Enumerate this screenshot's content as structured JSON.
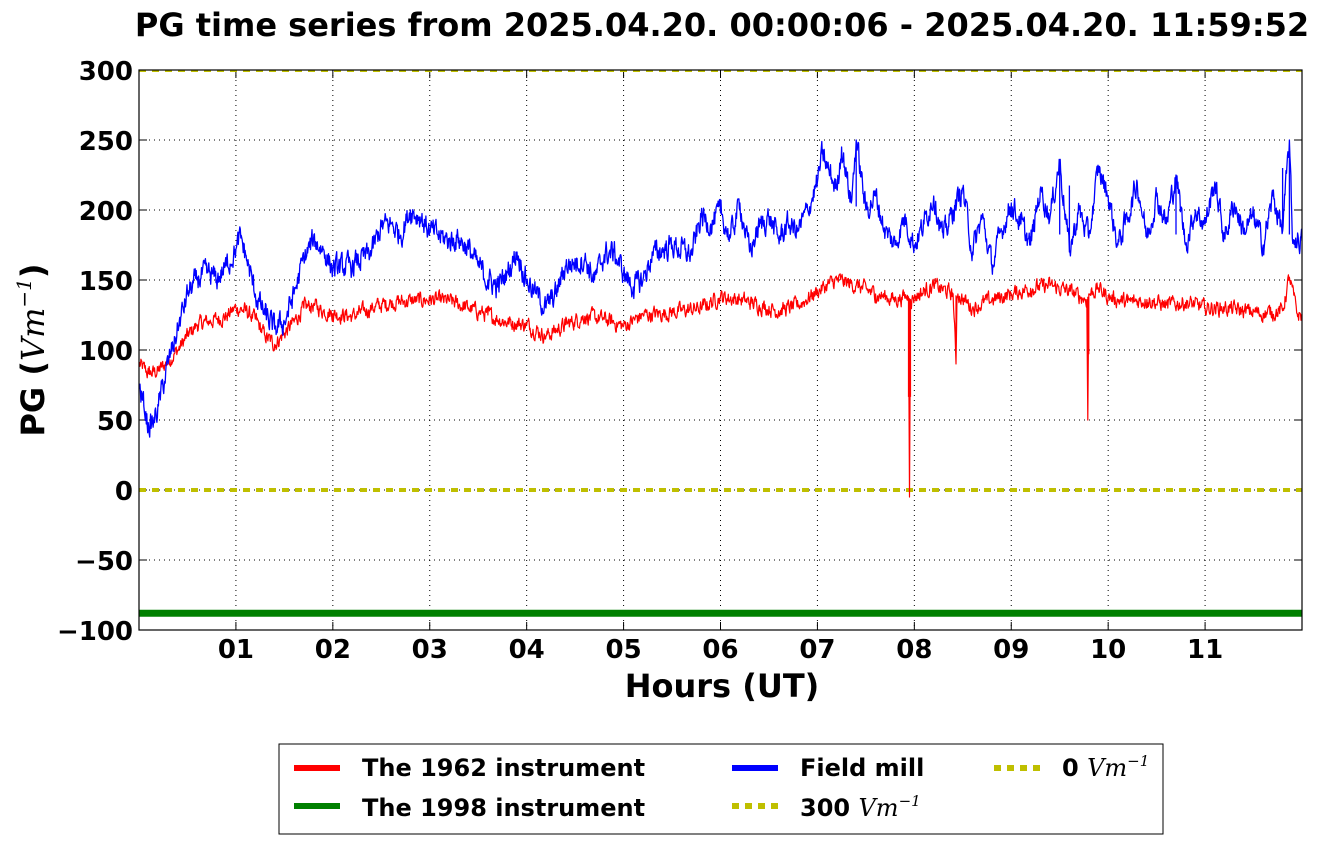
{
  "chart_data": {
    "type": "line",
    "title": "PG time series from 2025.04.20. 00:00:06 - 2025.04.20. 11:59:52",
    "xlabel": "Hours (UT)",
    "ylabel_prefix": "PG (",
    "ylabel_unit": "Vm",
    "ylabel_exp": "−1",
    "ylabel_suffix": ")",
    "xlim": [
      0,
      12
    ],
    "ylim": [
      -100,
      300
    ],
    "grid": true,
    "x_ticks": [
      {
        "value": 1,
        "label": "01"
      },
      {
        "value": 2,
        "label": "02"
      },
      {
        "value": 3,
        "label": "03"
      },
      {
        "value": 4,
        "label": "04"
      },
      {
        "value": 5,
        "label": "05"
      },
      {
        "value": 6,
        "label": "06"
      },
      {
        "value": 7,
        "label": "07"
      },
      {
        "value": 8,
        "label": "08"
      },
      {
        "value": 9,
        "label": "09"
      },
      {
        "value": 10,
        "label": "10"
      },
      {
        "value": 11,
        "label": "11"
      }
    ],
    "y_ticks": [
      {
        "value": 300,
        "label": "300"
      },
      {
        "value": 250,
        "label": "250"
      },
      {
        "value": 200,
        "label": "200"
      },
      {
        "value": 150,
        "label": "150"
      },
      {
        "value": 100,
        "label": "100"
      },
      {
        "value": 50,
        "label": "50"
      },
      {
        "value": 0,
        "label": "0"
      },
      {
        "value": -50,
        "label": "−50"
      },
      {
        "value": -100,
        "label": "−100"
      }
    ],
    "legend_position": "bottom-center",
    "series": [
      {
        "name": "The 1962 instrument",
        "color": "#ff0000",
        "x": [
          0.0,
          0.1,
          0.2,
          0.3,
          0.4,
          0.5,
          0.6,
          0.7,
          0.8,
          0.9,
          1.0,
          1.1,
          1.2,
          1.3,
          1.4,
          1.5,
          1.6,
          1.7,
          1.8,
          1.9,
          2.0,
          2.2,
          2.4,
          2.6,
          2.8,
          3.0,
          3.2,
          3.4,
          3.6,
          3.8,
          4.0,
          4.2,
          4.4,
          4.6,
          4.8,
          5.0,
          5.2,
          5.4,
          5.6,
          5.8,
          6.0,
          6.2,
          6.4,
          6.6,
          6.8,
          7.0,
          7.2,
          7.4,
          7.6,
          7.8,
          7.9,
          7.94,
          7.95,
          7.96,
          8.0,
          8.2,
          8.4,
          8.43,
          8.44,
          8.45,
          8.6,
          8.8,
          9.0,
          9.2,
          9.4,
          9.6,
          9.78,
          9.79,
          9.8,
          9.9,
          10.0,
          10.2,
          10.4,
          10.6,
          10.8,
          11.0,
          11.2,
          11.4,
          11.6,
          11.8,
          11.87,
          11.95,
          12.0
        ],
        "y": [
          90,
          83,
          85,
          92,
          100,
          110,
          118,
          120,
          122,
          124,
          130,
          128,
          122,
          110,
          104,
          112,
          120,
          130,
          132,
          128,
          126,
          124,
          130,
          134,
          135,
          136,
          135,
          130,
          125,
          120,
          118,
          110,
          118,
          124,
          122,
          117,
          125,
          126,
          128,
          130,
          138,
          136,
          132,
          128,
          132,
          142,
          150,
          146,
          140,
          136,
          138,
          138,
          -5,
          136,
          138,
          146,
          140,
          90,
          138,
          140,
          130,
          136,
          140,
          144,
          146,
          142,
          136,
          50,
          140,
          144,
          138,
          134,
          136,
          132,
          134,
          130,
          130,
          128,
          126,
          128,
          152,
          126,
          124
        ]
      },
      {
        "name": "The 1998 instrument",
        "color": "#008000",
        "x": [
          0,
          12
        ],
        "y": [
          -88,
          -88
        ]
      },
      {
        "name": "Field mill",
        "color": "#0000ff",
        "x": [
          0.0,
          0.05,
          0.1,
          0.15,
          0.2,
          0.3,
          0.4,
          0.5,
          0.6,
          0.7,
          0.8,
          0.9,
          1.0,
          1.05,
          1.1,
          1.2,
          1.3,
          1.4,
          1.5,
          1.6,
          1.7,
          1.8,
          1.9,
          2.0,
          2.2,
          2.4,
          2.5,
          2.6,
          2.7,
          2.8,
          2.9,
          3.0,
          3.2,
          3.3,
          3.4,
          3.5,
          3.6,
          3.7,
          3.8,
          3.9,
          4.0,
          4.1,
          4.2,
          4.3,
          4.4,
          4.6,
          4.7,
          4.8,
          4.9,
          5.0,
          5.1,
          5.2,
          5.3,
          5.5,
          5.7,
          5.8,
          5.9,
          6.0,
          6.1,
          6.2,
          6.3,
          6.4,
          6.5,
          6.6,
          6.7,
          6.8,
          6.9,
          7.0,
          7.05,
          7.1,
          7.2,
          7.25,
          7.3,
          7.35,
          7.4,
          7.5,
          7.6,
          7.7,
          7.8,
          7.9,
          8.0,
          8.1,
          8.2,
          8.3,
          8.4,
          8.5,
          8.6,
          8.7,
          8.8,
          8.9,
          9.0,
          9.1,
          9.2,
          9.3,
          9.4,
          9.5,
          9.6,
          9.7,
          9.8,
          9.9,
          10.0,
          10.1,
          10.2,
          10.3,
          10.4,
          10.5,
          10.6,
          10.7,
          10.8,
          10.9,
          11.0,
          11.1,
          11.2,
          11.3,
          11.4,
          11.5,
          11.6,
          11.7,
          11.8,
          11.87,
          11.9,
          12.0
        ],
        "y": [
          75,
          60,
          45,
          48,
          60,
          90,
          115,
          140,
          150,
          155,
          150,
          160,
          172,
          180,
          168,
          140,
          125,
          115,
          120,
          140,
          165,
          178,
          172,
          158,
          160,
          170,
          188,
          190,
          182,
          200,
          195,
          185,
          178,
          180,
          172,
          160,
          150,
          145,
          155,
          170,
          150,
          140,
          130,
          140,
          160,
          165,
          150,
          168,
          170,
          155,
          145,
          150,
          168,
          175,
          168,
          195,
          190,
          198,
          180,
          205,
          170,
          188,
          195,
          180,
          190,
          185,
          200,
          220,
          240,
          230,
          215,
          245,
          225,
          205,
          250,
          200,
          210,
          185,
          175,
          195,
          175,
          190,
          210,
          180,
          200,
          215,
          170,
          195,
          160,
          185,
          205,
          190,
          175,
          215,
          195,
          235,
          170,
          200,
          180,
          230,
          210,
          175,
          195,
          220,
          180,
          210,
          190,
          225,
          175,
          200,
          190,
          220,
          180,
          205,
          185,
          195,
          175,
          210,
          185,
          250,
          180,
          178
        ]
      }
    ],
    "reference_lines": [
      {
        "name_value": "300",
        "unit": "Vm",
        "exp": "−1",
        "y": 300,
        "color": "#bfbf00"
      },
      {
        "name_value": "0",
        "unit": "Vm",
        "exp": "−1",
        "y": 0,
        "color": "#bfbf00"
      }
    ],
    "legend": {
      "col1": [
        "The 1962 instrument",
        "The 1998 instrument"
      ],
      "col2_field": "Field mill",
      "col2_ref": {
        "value": "300",
        "unit": "Vm",
        "exp": "−1"
      },
      "col3_ref": {
        "value": "0",
        "unit": "Vm",
        "exp": "−1"
      }
    }
  }
}
